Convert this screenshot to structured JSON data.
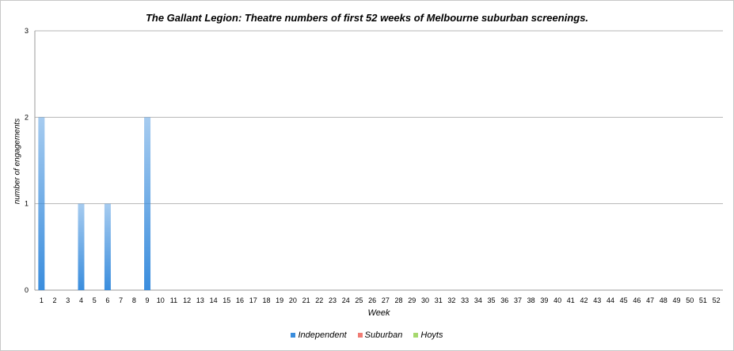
{
  "chart_data": {
    "type": "bar",
    "title": "The Gallant Legion: Theatre numbers of first 52 weeks of Melbourne suburban screenings.",
    "xlabel": "Week",
    "ylabel": "number of engagements",
    "ylim": [
      0,
      3
    ],
    "yticks": [
      "0",
      "1",
      "2",
      "3"
    ],
    "grid": true,
    "legend_position": "bottom",
    "categories": [
      "1",
      "2",
      "3",
      "4",
      "5",
      "6",
      "7",
      "8",
      "9",
      "10",
      "11",
      "12",
      "13",
      "14",
      "15",
      "16",
      "17",
      "18",
      "19",
      "20",
      "21",
      "22",
      "23",
      "24",
      "25",
      "26",
      "27",
      "28",
      "29",
      "30",
      "31",
      "32",
      "33",
      "34",
      "35",
      "36",
      "37",
      "38",
      "39",
      "40",
      "41",
      "42",
      "43",
      "44",
      "45",
      "46",
      "47",
      "48",
      "49",
      "50",
      "51",
      "52"
    ],
    "series": [
      {
        "name": "Independent",
        "color": "#3a8ddd",
        "values": [
          2,
          0,
          0,
          1,
          0,
          1,
          0,
          0,
          2,
          0,
          0,
          0,
          0,
          0,
          0,
          0,
          0,
          0,
          0,
          0,
          0,
          0,
          0,
          0,
          0,
          0,
          0,
          0,
          0,
          0,
          0,
          0,
          0,
          0,
          0,
          0,
          0,
          0,
          0,
          0,
          0,
          0,
          0,
          0,
          0,
          0,
          0,
          0,
          0,
          0,
          0,
          0
        ]
      },
      {
        "name": "Suburban",
        "color": "#f07c74",
        "values": [
          0,
          0,
          0,
          0,
          0,
          0,
          0,
          0,
          0,
          0,
          0,
          0,
          0,
          0,
          0,
          0,
          0,
          0,
          0,
          0,
          0,
          0,
          0,
          0,
          0,
          0,
          0,
          0,
          0,
          0,
          0,
          0,
          0,
          0,
          0,
          0,
          0,
          0,
          0,
          0,
          0,
          0,
          0,
          0,
          0,
          0,
          0,
          0,
          0,
          0,
          0,
          0
        ]
      },
      {
        "name": "Hoyts",
        "color": "#a6d86e",
        "values": [
          0,
          0,
          0,
          0,
          0,
          0,
          0,
          0,
          0,
          0,
          0,
          0,
          0,
          0,
          0,
          0,
          0,
          0,
          0,
          0,
          0,
          0,
          0,
          0,
          0,
          0,
          0,
          0,
          0,
          0,
          0,
          0,
          0,
          0,
          0,
          0,
          0,
          0,
          0,
          0,
          0,
          0,
          0,
          0,
          0,
          0,
          0,
          0,
          0,
          0,
          0,
          0
        ]
      }
    ]
  }
}
